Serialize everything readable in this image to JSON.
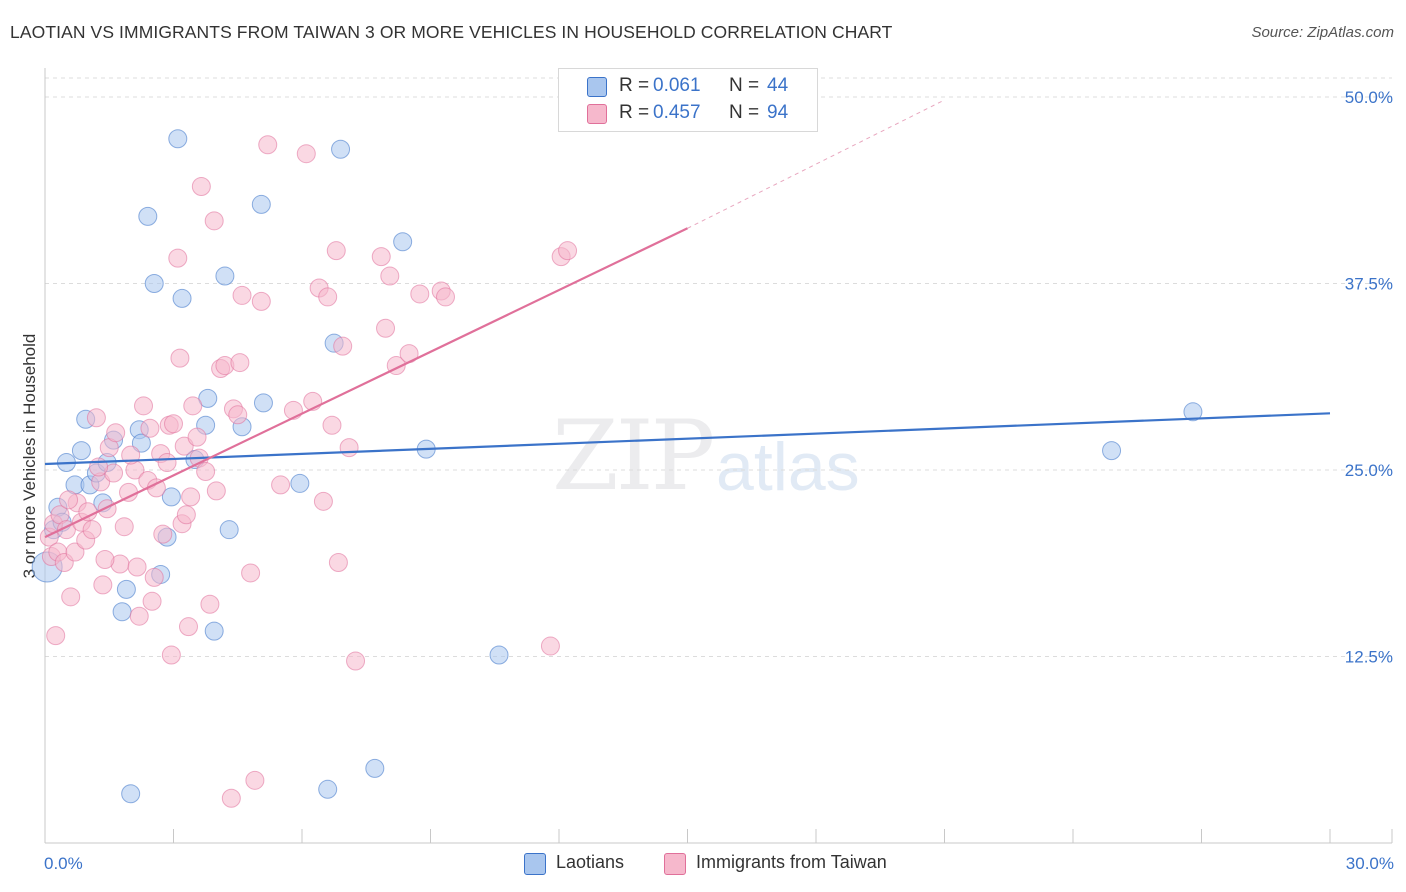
{
  "chart_data": {
    "type": "scatter",
    "title": "LAOTIAN VS IMMIGRANTS FROM TAIWAN 3 OR MORE VEHICLES IN HOUSEHOLD CORRELATION CHART",
    "source": "Source: ZipAtlas.com",
    "xlabel": "",
    "ylabel": "3 or more Vehicles in Household",
    "xlim": [
      0,
      30
    ],
    "ylim": [
      0,
      50
    ],
    "x_tick_labels": [
      "0.0%",
      "30.0%"
    ],
    "y_ticks": [
      12.5,
      25.0,
      37.5,
      50.0
    ],
    "y_tick_labels": [
      "12.5%",
      "25.0%",
      "37.5%",
      "50.0%"
    ],
    "grid": true,
    "watermark": [
      "ZIP",
      "atlas"
    ],
    "legend": {
      "placement": "top-center",
      "entries": [
        {
          "r_label": "R =",
          "r_value": "0.061",
          "n_label": "N =",
          "n_value": "44"
        },
        {
          "r_label": "R =",
          "r_value": "0.457",
          "n_label": "N =",
          "n_value": "94"
        }
      ]
    },
    "series": [
      {
        "name": "Laotians",
        "color": "#3b73c9",
        "fill": "#a9c6ee",
        "trend": {
          "x": [
            0,
            30
          ],
          "y": [
            25.4,
            28.8
          ]
        },
        "points": [
          [
            0.05,
            18.5
          ],
          [
            0.2,
            21.0
          ],
          [
            0.3,
            22.5
          ],
          [
            0.4,
            21.5
          ],
          [
            0.5,
            25.5
          ],
          [
            0.7,
            24.0
          ],
          [
            0.85,
            26.3
          ],
          [
            0.95,
            28.4
          ],
          [
            1.05,
            24.0
          ],
          [
            1.2,
            24.8
          ],
          [
            1.35,
            22.8
          ],
          [
            1.45,
            25.5
          ],
          [
            1.6,
            27.0
          ],
          [
            1.8,
            15.5
          ],
          [
            1.9,
            17.0
          ],
          [
            2.0,
            3.3
          ],
          [
            2.2,
            27.7
          ],
          [
            2.25,
            26.8
          ],
          [
            2.4,
            42.0
          ],
          [
            2.55,
            37.5
          ],
          [
            2.7,
            18.0
          ],
          [
            2.85,
            20.5
          ],
          [
            2.95,
            23.2
          ],
          [
            3.1,
            47.2
          ],
          [
            3.2,
            36.5
          ],
          [
            3.5,
            25.7
          ],
          [
            3.75,
            28.0
          ],
          [
            3.8,
            29.8
          ],
          [
            3.95,
            14.2
          ],
          [
            4.2,
            38.0
          ],
          [
            4.3,
            21.0
          ],
          [
            4.6,
            27.9
          ],
          [
            5.05,
            42.8
          ],
          [
            5.1,
            29.5
          ],
          [
            5.95,
            24.1
          ],
          [
            6.6,
            3.6
          ],
          [
            6.75,
            33.5
          ],
          [
            6.9,
            46.5
          ],
          [
            7.7,
            5.0
          ],
          [
            8.35,
            40.3
          ],
          [
            8.9,
            26.4
          ],
          [
            10.6,
            12.6
          ],
          [
            24.9,
            26.3
          ],
          [
            26.8,
            28.9
          ]
        ]
      },
      {
        "name": "Immigrants from Taiwan",
        "color": "#e0709a",
        "fill": "#f6b8cc",
        "trend": {
          "x": [
            0,
            15
          ],
          "y": [
            20.5,
            41.2
          ]
        },
        "trend_dashed": {
          "x": [
            15,
            21
          ],
          "y": [
            41.2,
            49.8
          ]
        },
        "points": [
          [
            0.1,
            20.5
          ],
          [
            0.15,
            19.2
          ],
          [
            0.2,
            21.4
          ],
          [
            0.25,
            13.9
          ],
          [
            0.3,
            19.5
          ],
          [
            0.35,
            22.0
          ],
          [
            0.45,
            18.8
          ],
          [
            0.5,
            21.0
          ],
          [
            0.6,
            16.5
          ],
          [
            0.7,
            19.5
          ],
          [
            0.75,
            22.8
          ],
          [
            0.85,
            21.5
          ],
          [
            0.95,
            20.3
          ],
          [
            1.0,
            22.2
          ],
          [
            1.1,
            21.0
          ],
          [
            1.2,
            28.5
          ],
          [
            1.3,
            24.2
          ],
          [
            1.35,
            17.3
          ],
          [
            1.45,
            22.4
          ],
          [
            1.5,
            26.5
          ],
          [
            1.6,
            24.8
          ],
          [
            1.65,
            27.5
          ],
          [
            1.75,
            18.7
          ],
          [
            1.85,
            21.2
          ],
          [
            1.95,
            23.5
          ],
          [
            2.1,
            25.0
          ],
          [
            2.15,
            18.5
          ],
          [
            2.2,
            15.2
          ],
          [
            2.3,
            29.3
          ],
          [
            2.4,
            24.3
          ],
          [
            2.5,
            16.2
          ],
          [
            2.55,
            17.8
          ],
          [
            2.6,
            23.8
          ],
          [
            2.7,
            26.1
          ],
          [
            2.75,
            20.7
          ],
          [
            2.85,
            25.5
          ],
          [
            2.9,
            28.0
          ],
          [
            2.95,
            12.6
          ],
          [
            3.0,
            28.1
          ],
          [
            3.1,
            39.2
          ],
          [
            3.15,
            32.5
          ],
          [
            3.2,
            21.4
          ],
          [
            3.25,
            26.6
          ],
          [
            3.3,
            22.0
          ],
          [
            3.35,
            14.5
          ],
          [
            3.45,
            29.3
          ],
          [
            3.55,
            27.2
          ],
          [
            3.6,
            25.8
          ],
          [
            3.65,
            44.0
          ],
          [
            3.75,
            24.9
          ],
          [
            3.85,
            16.0
          ],
          [
            3.95,
            41.7
          ],
          [
            4.1,
            31.8
          ],
          [
            4.2,
            32.0
          ],
          [
            4.35,
            3.0
          ],
          [
            4.4,
            29.1
          ],
          [
            4.5,
            28.7
          ],
          [
            4.55,
            32.2
          ],
          [
            4.6,
            36.7
          ],
          [
            4.8,
            18.1
          ],
          [
            4.9,
            4.2
          ],
          [
            5.05,
            36.3
          ],
          [
            5.2,
            46.8
          ],
          [
            5.5,
            24.0
          ],
          [
            5.8,
            29.0
          ],
          [
            6.1,
            46.2
          ],
          [
            6.25,
            29.6
          ],
          [
            6.4,
            37.2
          ],
          [
            6.5,
            22.9
          ],
          [
            6.6,
            36.6
          ],
          [
            6.7,
            28.0
          ],
          [
            6.8,
            39.7
          ],
          [
            6.85,
            18.8
          ],
          [
            6.95,
            33.3
          ],
          [
            7.1,
            26.5
          ],
          [
            7.25,
            12.2
          ],
          [
            7.85,
            39.3
          ],
          [
            7.95,
            34.5
          ],
          [
            8.05,
            38.0
          ],
          [
            8.2,
            32.0
          ],
          [
            8.5,
            32.8
          ],
          [
            8.75,
            36.8
          ],
          [
            9.25,
            37.0
          ],
          [
            9.35,
            36.6
          ],
          [
            11.8,
            13.2
          ],
          [
            12.05,
            39.3
          ],
          [
            12.2,
            39.7
          ],
          [
            1.4,
            19.0
          ],
          [
            2.0,
            26.0
          ],
          [
            0.55,
            23.0
          ],
          [
            1.25,
            25.2
          ],
          [
            2.45,
            27.8
          ],
          [
            3.4,
            23.2
          ],
          [
            4.0,
            23.6
          ]
        ]
      }
    ]
  },
  "legend_bottom": [
    {
      "label": "Laotians"
    },
    {
      "label": "Immigrants from Taiwan"
    }
  ]
}
